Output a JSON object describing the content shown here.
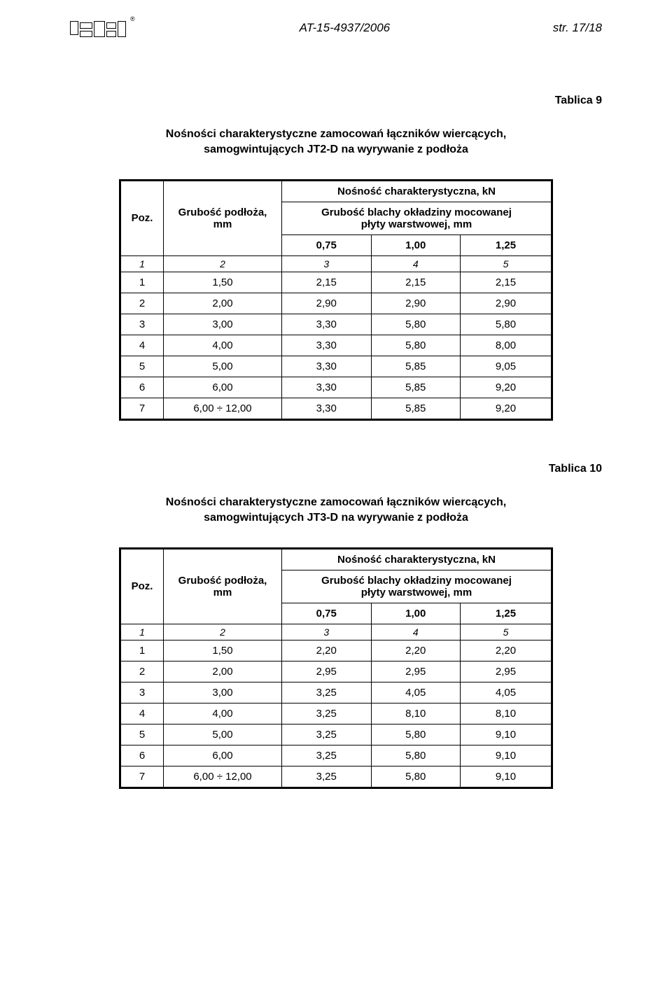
{
  "header": {
    "doc_id": "AT-15-4937/2006",
    "page_label": "str. 17/18",
    "registered": "®"
  },
  "tablica9": {
    "label": "Tablica 9",
    "title_line1": "Nośności charakterystyczne zamocowań łączników wiercących,",
    "title_line2": "samogwintujących JT2-D na wyrywanie z podłoża",
    "h_poz": "Poz.",
    "h_grub": "Grubość podłoża,",
    "h_grub2": "mm",
    "h_nos": "Nośność charakterystyczna, kN",
    "h_sub1": "Grubość blachy okładziny mocowanej",
    "h_sub2": "płyty warstwowej, mm",
    "c1": "0,75",
    "c2": "1,00",
    "c3": "1,25",
    "idx": [
      "1",
      "2",
      "3",
      "4",
      "5"
    ],
    "rows": [
      {
        "p": "1",
        "g": "1,50",
        "a": "2,15",
        "b": "2,15",
        "c": "2,15"
      },
      {
        "p": "2",
        "g": "2,00",
        "a": "2,90",
        "b": "2,90",
        "c": "2,90"
      },
      {
        "p": "3",
        "g": "3,00",
        "a": "3,30",
        "b": "5,80",
        "c": "5,80"
      },
      {
        "p": "4",
        "g": "4,00",
        "a": "3,30",
        "b": "5,80",
        "c": "8,00"
      },
      {
        "p": "5",
        "g": "5,00",
        "a": "3,30",
        "b": "5,85",
        "c": "9,05"
      },
      {
        "p": "6",
        "g": "6,00",
        "a": "3,30",
        "b": "5,85",
        "c": "9,20"
      },
      {
        "p": "7",
        "g": "6,00 ÷ 12,00",
        "a": "3,30",
        "b": "5,85",
        "c": "9,20"
      }
    ]
  },
  "tablica10": {
    "label": "Tablica 10",
    "title_line1": "Nośności charakterystyczne zamocowań łączników wiercących,",
    "title_line2": "samogwintujących JT3-D na wyrywanie z podłoża",
    "h_poz": "Poz.",
    "h_grub": "Grubość podłoża,",
    "h_grub2": "mm",
    "h_nos": "Nośność charakterystyczna, kN",
    "h_sub1": "Grubość blachy okładziny mocowanej",
    "h_sub2": "płyty warstwowej, mm",
    "c1": "0,75",
    "c2": "1,00",
    "c3": "1,25",
    "idx": [
      "1",
      "2",
      "3",
      "4",
      "5"
    ],
    "rows": [
      {
        "p": "1",
        "g": "1,50",
        "a": "2,20",
        "b": "2,20",
        "c": "2,20"
      },
      {
        "p": "2",
        "g": "2,00",
        "a": "2,95",
        "b": "2,95",
        "c": "2,95"
      },
      {
        "p": "3",
        "g": "3,00",
        "a": "3,25",
        "b": "4,05",
        "c": "4,05"
      },
      {
        "p": "4",
        "g": "4,00",
        "a": "3,25",
        "b": "8,10",
        "c": "8,10"
      },
      {
        "p": "5",
        "g": "5,00",
        "a": "3,25",
        "b": "5,80",
        "c": "9,10"
      },
      {
        "p": "6",
        "g": "6,00",
        "a": "3,25",
        "b": "5,80",
        "c": "9,10"
      },
      {
        "p": "7",
        "g": "6,00 ÷ 12,00",
        "a": "3,25",
        "b": "5,80",
        "c": "9,10"
      }
    ]
  }
}
